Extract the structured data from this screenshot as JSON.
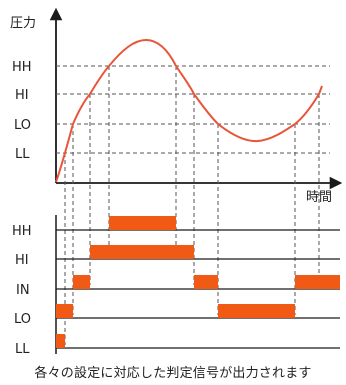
{
  "axis": {
    "y_title": "圧力",
    "x_title": "時間"
  },
  "levels": [
    "HH",
    "HI",
    "LO",
    "LL"
  ],
  "signals": [
    "HH",
    "HI",
    "IN",
    "LO",
    "LL"
  ],
  "caption": "各々の設定に対応した判定信号が出力されます",
  "colors": {
    "curve": "#e8553a",
    "bar": "#f05a14",
    "axis": "#1a1a1a",
    "guide": "#555555"
  }
}
